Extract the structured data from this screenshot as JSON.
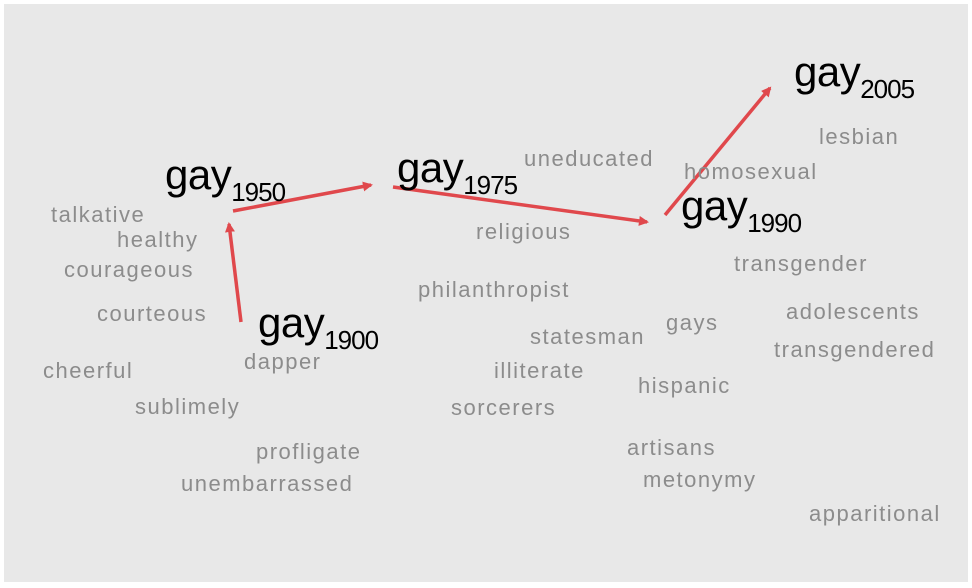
{
  "word": "gay",
  "colors": {
    "background": "#e8e8e8",
    "arrow": "#e0484c",
    "neighbor_text": "#8c8c8c",
    "anchor_text": "#000000"
  },
  "anchors": [
    {
      "id": "1900",
      "word": "gay",
      "year": "1900"
    },
    {
      "id": "1950",
      "word": "gay",
      "year": "1950"
    },
    {
      "id": "1975",
      "word": "gay",
      "year": "1975"
    },
    {
      "id": "1990",
      "word": "gay",
      "year": "1990"
    },
    {
      "id": "2005",
      "word": "gay",
      "year": "2005"
    }
  ],
  "neighbors": [
    "talkative",
    "healthy",
    "courageous",
    "courteous",
    "cheerful",
    "sublimely",
    "dapper",
    "profligate",
    "unembarrassed",
    "uneducated",
    "religious",
    "philanthropist",
    "statesman",
    "illiterate",
    "sorcerers",
    "homosexual",
    "lesbian",
    "transgender",
    "adolescents",
    "transgendered",
    "gays",
    "hispanic",
    "artisans",
    "metonymy",
    "apparitional"
  ]
}
